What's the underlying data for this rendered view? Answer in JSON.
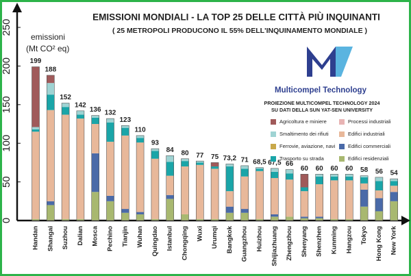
{
  "chart_data": {
    "type": "stacked_bar",
    "title": "EMISSIONI MONDIALI - LA TOP 25 DELLE CITTÀ PIÙ INQUINANTI",
    "subtitle": "( 25 METROPOLI PRODUCONO IL 55% DELL'INQUINAMENTO MONDIALE )",
    "y_label": [
      "emissioni",
      "(Mt CO² eq)"
    ],
    "brand": "Multicompel Technology",
    "legend_title": [
      "PROIEZIONE MULTICOMPEL TECHNOLOGY 2024",
      "SU DATI DELLA SUN YAT-SEN UNIVERSITY"
    ],
    "categories": [
      "Handan",
      "Shangai",
      "Suzhou",
      "Dalian",
      "Mosca",
      "Pechino",
      "Tianjin",
      "Wuhan",
      "Quingdao",
      "Istanbul",
      "Chongqing",
      "Wuxi",
      "Urumqi",
      "Bangkok",
      "Guangzhou",
      "Huizhou",
      "Shijiazhuang",
      "Zhengzhou",
      "Shenyang",
      "Shenzhen",
      "Kunming",
      "Hangzou",
      "Tokyo",
      "Hong Kong",
      "New York"
    ],
    "totals": [
      199,
      188,
      152,
      142,
      136,
      132,
      123,
      110,
      93,
      84,
      80,
      77,
      75,
      73.2,
      71,
      68.5,
      67.5,
      66,
      60,
      60,
      60,
      60,
      58,
      56,
      54
    ],
    "total_labels": [
      "199",
      "188",
      "152",
      "142",
      "136",
      "132",
      "123",
      "110",
      "93",
      "84",
      "80",
      "77",
      "75",
      "73,2",
      "71",
      "68,5",
      "67,5",
      "66",
      "60",
      "60",
      "60",
      "60",
      "58",
      "56",
      "54"
    ],
    "series": [
      {
        "name": "Edifici residenziali",
        "color": "#a8b870",
        "values": [
          2,
          20,
          2,
          2,
          37,
          25,
          10,
          8,
          2,
          28,
          8,
          2,
          2,
          10,
          10,
          2,
          5,
          5,
          3,
          3,
          2,
          2,
          18,
          12,
          25
        ]
      },
      {
        "name": "Edifici commerciali",
        "color": "#4a6aa8",
        "values": [
          0,
          5,
          0,
          0,
          50,
          7,
          5,
          3,
          0,
          5,
          0,
          0,
          0,
          8,
          5,
          0,
          3,
          0,
          2,
          2,
          0,
          0,
          22,
          17,
          12
        ]
      },
      {
        "name": "Ferrovie, aviazione, navi",
        "color": "#c8a84a",
        "values": [
          0,
          0,
          0,
          0,
          0,
          0,
          0,
          0,
          0,
          0,
          0,
          0,
          0,
          0,
          0,
          0,
          0,
          0,
          0,
          0,
          0,
          0,
          0,
          0,
          0
        ]
      },
      {
        "name": "Edifici industriali",
        "color": "#e8b89a",
        "values": [
          113,
          118,
          135,
          130,
          38,
          70,
          95,
          90,
          78,
          25,
          62,
          70,
          65,
          20,
          42,
          62,
          47,
          48,
          33,
          42,
          50,
          50,
          8,
          10,
          8
        ]
      },
      {
        "name": "Processi industriali",
        "color": "#e8b4b4",
        "values": [
          0,
          0,
          0,
          0,
          0,
          0,
          0,
          0,
          0,
          0,
          0,
          0,
          0,
          0,
          0,
          0,
          0,
          0,
          0,
          0,
          0,
          0,
          0,
          0,
          0
        ]
      },
      {
        "name": "Trasporto su strada",
        "color": "#1aa5a8",
        "values": [
          3,
          20,
          10,
          5,
          8,
          25,
          10,
          6,
          10,
          18,
          7,
          3,
          3,
          32,
          10,
          3,
          8,
          8,
          5,
          10,
          5,
          5,
          8,
          12,
          6
        ]
      },
      {
        "name": "Smaltimento dei rifiuti",
        "color": "#9fd3d3",
        "values": [
          3,
          15,
          5,
          5,
          3,
          5,
          3,
          3,
          3,
          8,
          3,
          2,
          0,
          3.2,
          4,
          1.5,
          4.5,
          5,
          0,
          3,
          3,
          3,
          2,
          5,
          3
        ]
      },
      {
        "name": "Agricoltura e miniere",
        "color": "#a05a5a",
        "values": [
          78,
          10,
          0,
          0,
          0,
          0,
          0,
          0,
          0,
          0,
          0,
          0,
          5,
          0,
          0,
          0,
          0,
          0,
          17,
          0,
          0,
          0,
          0,
          0,
          0
        ]
      }
    ],
    "ylim": [
      0,
      250
    ],
    "yticks": [
      0,
      50,
      100,
      150,
      200,
      250
    ],
    "grid": false
  }
}
